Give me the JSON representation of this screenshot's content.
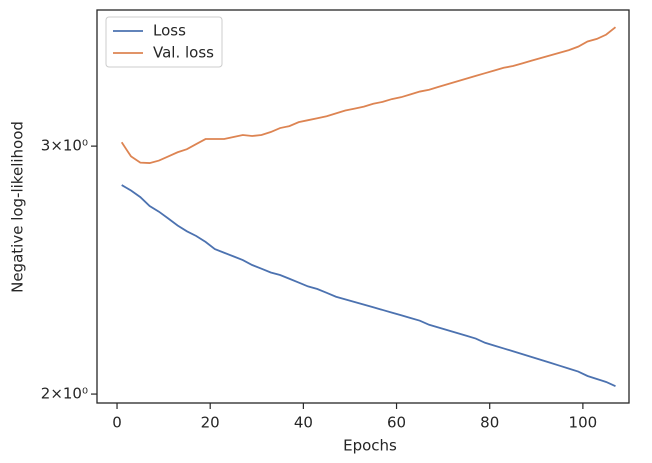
{
  "chart_data": {
    "type": "line",
    "xlabel": "Epochs",
    "ylabel": "Negative log-likelihood",
    "x": [
      1,
      3,
      5,
      7,
      9,
      11,
      13,
      15,
      17,
      19,
      21,
      23,
      25,
      27,
      29,
      31,
      33,
      35,
      37,
      39,
      41,
      43,
      45,
      47,
      49,
      51,
      53,
      55,
      57,
      59,
      61,
      63,
      65,
      67,
      69,
      71,
      73,
      75,
      77,
      79,
      81,
      83,
      85,
      87,
      89,
      91,
      93,
      95,
      97,
      99,
      101,
      103,
      105,
      107
    ],
    "series": [
      {
        "name": "Loss",
        "color": "#4c72b0",
        "values": [
          2.815,
          2.79,
          2.76,
          2.72,
          2.695,
          2.665,
          2.635,
          2.61,
          2.59,
          2.565,
          2.535,
          2.52,
          2.505,
          2.49,
          2.47,
          2.455,
          2.44,
          2.43,
          2.415,
          2.4,
          2.385,
          2.375,
          2.36,
          2.345,
          2.335,
          2.325,
          2.315,
          2.305,
          2.295,
          2.285,
          2.275,
          2.265,
          2.255,
          2.24,
          2.23,
          2.22,
          2.21,
          2.2,
          2.19,
          2.175,
          2.165,
          2.155,
          2.145,
          2.135,
          2.125,
          2.115,
          2.105,
          2.095,
          2.085,
          2.075,
          2.06,
          2.05,
          2.04,
          2.026
        ]
      },
      {
        "name": "Val. loss",
        "color": "#dd8452",
        "values": [
          3.019,
          2.95,
          2.92,
          2.918,
          2.93,
          2.95,
          2.97,
          2.985,
          3.01,
          3.035,
          3.035,
          3.035,
          3.045,
          3.055,
          3.05,
          3.055,
          3.07,
          3.09,
          3.1,
          3.12,
          3.13,
          3.14,
          3.15,
          3.165,
          3.18,
          3.19,
          3.2,
          3.215,
          3.225,
          3.24,
          3.25,
          3.265,
          3.28,
          3.29,
          3.305,
          3.32,
          3.335,
          3.35,
          3.365,
          3.38,
          3.395,
          3.41,
          3.42,
          3.435,
          3.45,
          3.465,
          3.48,
          3.495,
          3.51,
          3.53,
          3.56,
          3.575,
          3.6,
          3.644
        ]
      }
    ],
    "xlim": [
      -4.3,
      109.9
    ],
    "xticks": [
      0,
      20,
      40,
      60,
      80,
      100
    ],
    "ylim": [
      1.971,
      3.748
    ],
    "yscale": "log",
    "yticks": [
      {
        "value": 3,
        "label": "3×10⁰"
      },
      {
        "value": 2,
        "label": "2×10⁰"
      }
    ],
    "legend": "upper left"
  }
}
